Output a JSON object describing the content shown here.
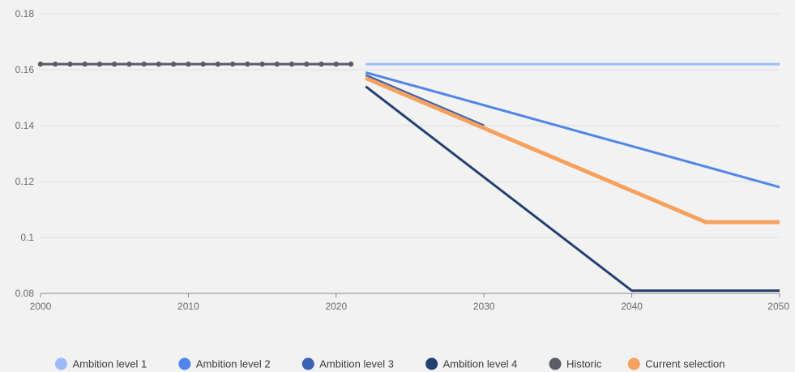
{
  "chart_data": {
    "type": "line",
    "title": "",
    "xlabel": "",
    "ylabel": "",
    "xlim": [
      2000,
      2050
    ],
    "ylim": [
      0.08,
      0.18
    ],
    "x_ticks": [
      {
        "value": 2000,
        "label": "2000"
      },
      {
        "value": 2010,
        "label": "2010"
      },
      {
        "value": 2020,
        "label": "2020"
      },
      {
        "value": 2030,
        "label": "2030"
      },
      {
        "value": 2040,
        "label": "2040"
      },
      {
        "value": 2050,
        "label": "2050"
      }
    ],
    "y_ticks": [
      {
        "value": 0.08,
        "label": "0.08"
      },
      {
        "value": 0.1,
        "label": "0.1"
      },
      {
        "value": 0.12,
        "label": "0.12"
      },
      {
        "value": 0.14,
        "label": "0.14"
      },
      {
        "value": 0.16,
        "label": "0.16"
      },
      {
        "value": 0.18,
        "label": "0.18"
      }
    ],
    "grid": true,
    "legend_position": "bottom",
    "series": [
      {
        "name": "Ambition level 1",
        "color": "#9dbcf7",
        "markers": false,
        "points": [
          [
            2022,
            0.162
          ],
          [
            2050,
            0.162
          ]
        ]
      },
      {
        "name": "Ambition level 2",
        "color": "#4f86e8",
        "markers": false,
        "points": [
          [
            2022,
            0.159
          ],
          [
            2050,
            0.118
          ]
        ]
      },
      {
        "name": "Ambition level 3",
        "color": "#3a62ae",
        "markers": false,
        "points": [
          [
            2022,
            0.158
          ],
          [
            2030,
            0.14
          ]
        ]
      },
      {
        "name": "Ambition level 4",
        "color": "#24406f",
        "markers": false,
        "points": [
          [
            2022,
            0.154
          ],
          [
            2040,
            0.081
          ],
          [
            2050,
            0.081
          ]
        ]
      },
      {
        "name": "Historic",
        "color": "#5a5d66",
        "markers": true,
        "points": [
          [
            2000,
            0.162
          ],
          [
            2001,
            0.162
          ],
          [
            2002,
            0.162
          ],
          [
            2003,
            0.162
          ],
          [
            2004,
            0.162
          ],
          [
            2005,
            0.162
          ],
          [
            2006,
            0.162
          ],
          [
            2007,
            0.162
          ],
          [
            2008,
            0.162
          ],
          [
            2009,
            0.162
          ],
          [
            2010,
            0.162
          ],
          [
            2011,
            0.162
          ],
          [
            2012,
            0.162
          ],
          [
            2013,
            0.162
          ],
          [
            2014,
            0.162
          ],
          [
            2015,
            0.162
          ],
          [
            2016,
            0.162
          ],
          [
            2017,
            0.162
          ],
          [
            2018,
            0.162
          ],
          [
            2019,
            0.162
          ],
          [
            2020,
            0.162
          ],
          [
            2021,
            0.162
          ]
        ]
      },
      {
        "name": "Current selection",
        "color": "#f6a15e",
        "markers": false,
        "points": [
          [
            2022,
            0.157
          ],
          [
            2045,
            0.1055
          ],
          [
            2050,
            0.1055
          ]
        ]
      }
    ]
  }
}
